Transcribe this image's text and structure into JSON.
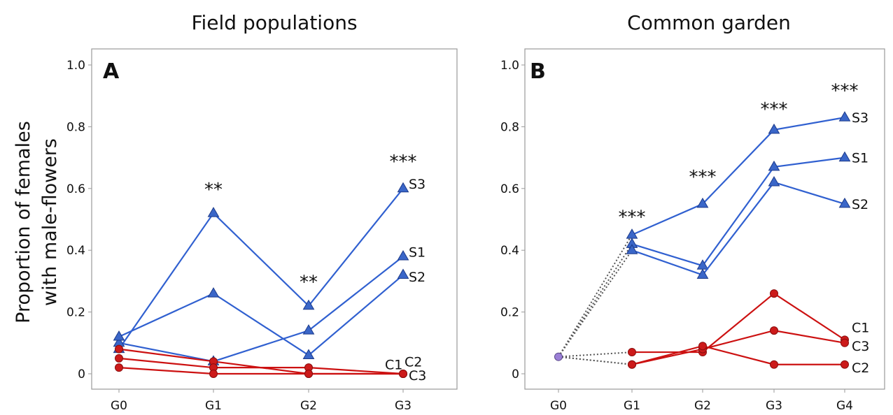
{
  "chart_data": [
    {
      "type": "line",
      "panel_letter": "A",
      "title": "Field populations",
      "xlabel": "",
      "ylabel": "Proportion of females with male-flowers",
      "ylabel_lines": [
        "Proportion of females",
        "with male-flowers"
      ],
      "categories": [
        "G0",
        "G1",
        "G2",
        "G3"
      ],
      "yticks": [
        "0",
        "0.2",
        "0.4",
        "0.6",
        "0.8",
        "1.0"
      ],
      "ylim": [
        0,
        1.0
      ],
      "grid": false,
      "significance": [
        {
          "x": "G1",
          "label": "**",
          "y": 0.6
        },
        {
          "x": "G2",
          "label": "**",
          "y": 0.3
        },
        {
          "x": "G3",
          "label": "***",
          "y": 0.69
        }
      ],
      "series": [
        {
          "name": "S3",
          "group": "selected",
          "values": [
            0.08,
            0.52,
            0.22,
            0.6
          ],
          "label_y": 0.615
        },
        {
          "name": "S1",
          "group": "selected",
          "values": [
            0.1,
            0.04,
            0.14,
            0.38
          ],
          "label_y": 0.395
        },
        {
          "name": "S2",
          "group": "selected",
          "values": [
            0.12,
            0.26,
            0.06,
            0.32
          ],
          "label_y": 0.315
        },
        {
          "name": "C1",
          "group": "control",
          "values": [
            0.08,
            0.04,
            0.0,
            0.0
          ],
          "label_y": 0.03,
          "label_dx": -34
        },
        {
          "name": "C2",
          "group": "control",
          "values": [
            0.05,
            0.02,
            0.02,
            0.0
          ],
          "label_y": 0.04,
          "label_dx": -6
        },
        {
          "name": "C3",
          "group": "control",
          "values": [
            0.02,
            0.0,
            0.0,
            0.0
          ],
          "label_y": -0.005
        }
      ]
    },
    {
      "type": "line",
      "panel_letter": "B",
      "title": "Common garden",
      "xlabel": "",
      "ylabel": "",
      "categories": [
        "G0",
        "G1",
        "G2",
        "G3",
        "G4"
      ],
      "yticks": [
        "0",
        "0.2",
        "0.4",
        "0.6",
        "0.8",
        "1.0"
      ],
      "ylim": [
        0,
        1.0
      ],
      "grid": false,
      "start_point": {
        "x": "G0",
        "value": 0.055
      },
      "significance": [
        {
          "x": "G1",
          "label": "***",
          "y": 0.51
        },
        {
          "x": "G2",
          "label": "***",
          "y": 0.64
        },
        {
          "x": "G3",
          "label": "***",
          "y": 0.86
        },
        {
          "x": "G4",
          "label": "***",
          "y": 0.92
        }
      ],
      "series": [
        {
          "name": "S3",
          "group": "selected",
          "values": [
            0.055,
            0.45,
            0.55,
            0.79,
            0.83
          ],
          "label_y": 0.83
        },
        {
          "name": "S1",
          "group": "selected",
          "values": [
            0.055,
            0.42,
            0.35,
            0.67,
            0.7
          ],
          "label_y": 0.7
        },
        {
          "name": "S2",
          "group": "selected",
          "values": [
            0.055,
            0.4,
            0.32,
            0.62,
            0.55
          ],
          "label_y": 0.55
        },
        {
          "name": "C1",
          "group": "control",
          "values": [
            0.055,
            0.07,
            0.07,
            0.26,
            0.11
          ],
          "label_y": 0.15
        },
        {
          "name": "C3",
          "group": "control",
          "values": [
            0.055,
            0.03,
            0.08,
            0.14,
            0.1
          ],
          "label_y": 0.09
        },
        {
          "name": "C2",
          "group": "control",
          "values": [
            0.055,
            0.03,
            0.09,
            0.03,
            0.03
          ],
          "label_y": 0.02
        }
      ]
    }
  ],
  "colors": {
    "selected_line": "#3060d0",
    "selected_marker": "#3a66c8",
    "selected_marker_edge": "#1c3a8a",
    "control_line": "#cc1111",
    "control_marker": "#cc1a1a",
    "control_marker_edge": "#8a0d0d",
    "start_marker": "#9b7fd6",
    "dotted_link": "#555555",
    "frame": "#9a9a9a"
  }
}
